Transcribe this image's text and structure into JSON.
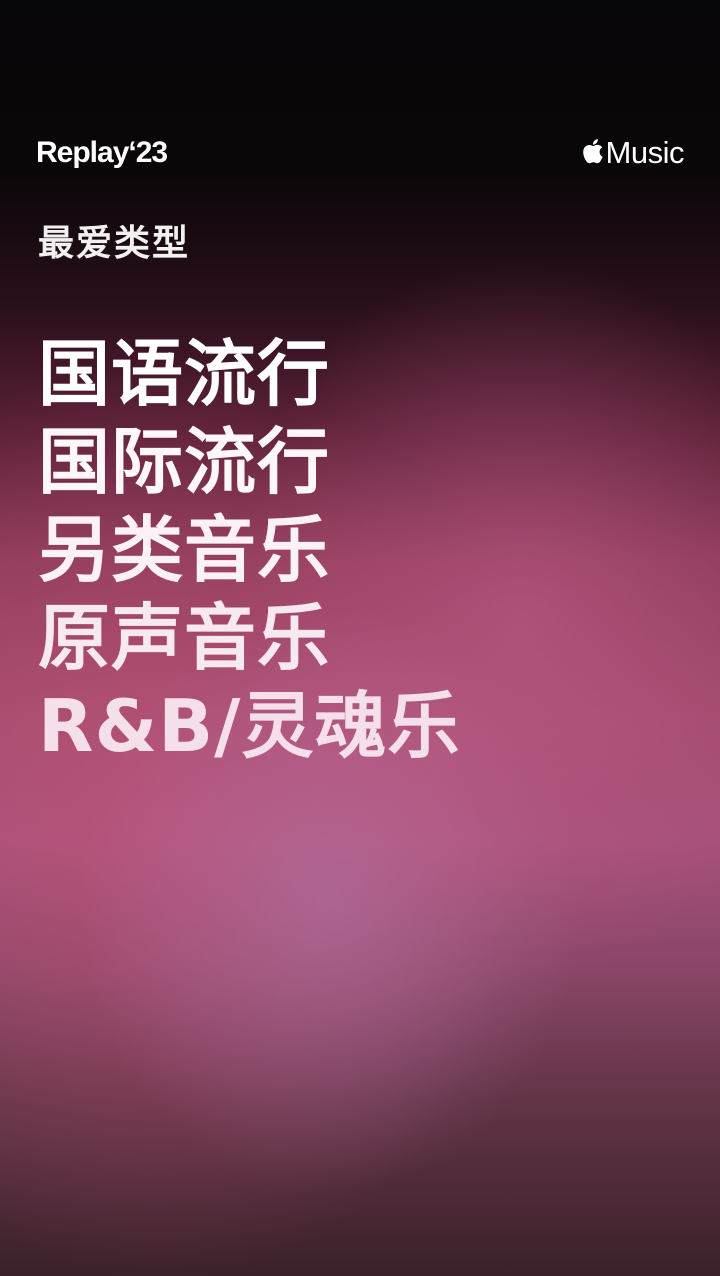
{
  "header": {
    "replay_logo": "Replay‘23",
    "service_logo": "Music",
    "service_icon": "apple-icon"
  },
  "section": {
    "label": "最爱类型"
  },
  "genres": [
    {
      "rank": 1,
      "label": "国语流行"
    },
    {
      "rank": 2,
      "label": "国际流行"
    },
    {
      "rank": 3,
      "label": "另类音乐"
    },
    {
      "rank": 4,
      "label": "原声音乐"
    },
    {
      "rank": 5,
      "label": "R&B/灵魂乐"
    }
  ],
  "colors": {
    "text": "#ffffff",
    "bg_top": "#070608",
    "bg_mid": "#a24a6e",
    "bg_bottom": "#3a2129"
  }
}
